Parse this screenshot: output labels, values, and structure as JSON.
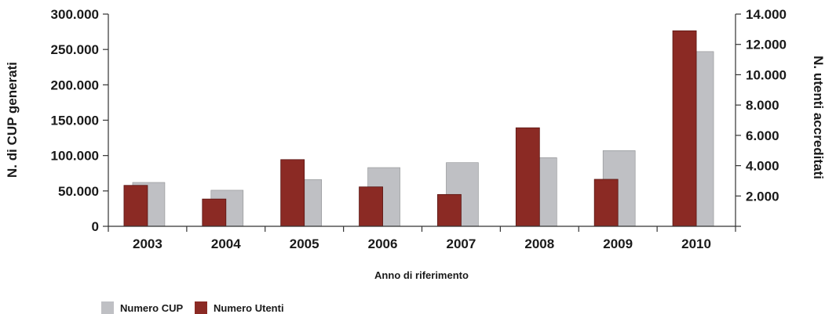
{
  "chart_data": {
    "type": "bar",
    "categories": [
      "2003",
      "2004",
      "2005",
      "2006",
      "2007",
      "2008",
      "2009",
      "2010"
    ],
    "series": [
      {
        "name": "Numero CUP",
        "axis": "left",
        "color": "#bfc0c4",
        "values": [
          62000,
          51000,
          66000,
          83000,
          90000,
          97000,
          107000,
          247000
        ]
      },
      {
        "name": "Numero Utenti",
        "axis": "right",
        "color": "#8b2a24",
        "values": [
          2700,
          1800,
          4400,
          2600,
          2100,
          6500,
          3100,
          12900
        ]
      }
    ],
    "ylabel_left": "N. di CUP generati",
    "ylabel_right": "N. utenti accreditati",
    "xlabel": "Anno di riferimento",
    "ylim_left": [
      0,
      300000
    ],
    "ylim_right": [
      0,
      14000
    ],
    "yticks_left": [
      "0",
      "50.000",
      "100.000",
      "150.000",
      "200.000",
      "250.000",
      "300.000"
    ],
    "yticks_right": [
      "2.000",
      "4.000",
      "6.000",
      "8.000",
      "10.000",
      "12.000",
      "14.000"
    ],
    "grid": false,
    "legend_position": "bottom-left"
  }
}
